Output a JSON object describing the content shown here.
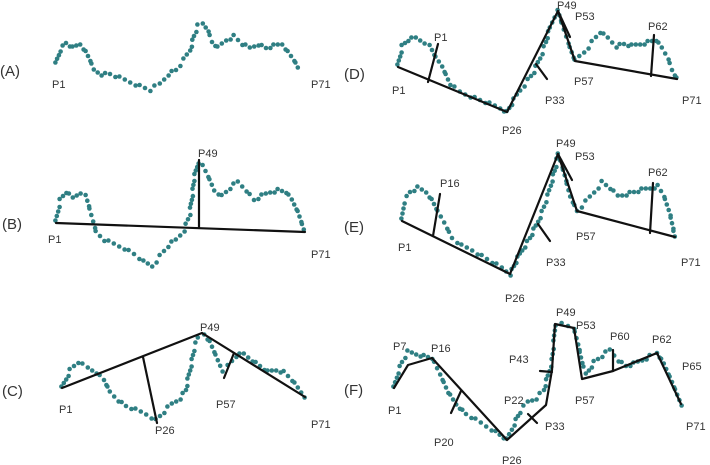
{
  "colors": {
    "points": "#2f7f83",
    "lines": "#111111",
    "text": "#333333"
  },
  "panels": [
    {
      "id": "A",
      "label": "(A)",
      "point_labels": [
        "P1",
        "P71"
      ]
    },
    {
      "id": "B",
      "label": "(B)",
      "point_labels": [
        "P1",
        "P49",
        "P71"
      ]
    },
    {
      "id": "C",
      "label": "(C)",
      "point_labels": [
        "P1",
        "P26",
        "P49",
        "P57",
        "P71"
      ]
    },
    {
      "id": "D",
      "label": "(D)",
      "point_labels": [
        "P1",
        "P1",
        "P26",
        "P33",
        "P49",
        "P53",
        "P57",
        "P62",
        "P71"
      ]
    },
    {
      "id": "E",
      "label": "(E)",
      "point_labels": [
        "P1",
        "P16",
        "P26",
        "P33",
        "P49",
        "P53",
        "P57",
        "P62",
        "P71"
      ]
    },
    {
      "id": "F",
      "label": "(F)",
      "point_labels": [
        "P1",
        "P7",
        "P16",
        "P20",
        "P22",
        "P26",
        "P33",
        "P43",
        "P49",
        "P53",
        "P57",
        "P60",
        "P62",
        "P65",
        "P71"
      ]
    }
  ]
}
